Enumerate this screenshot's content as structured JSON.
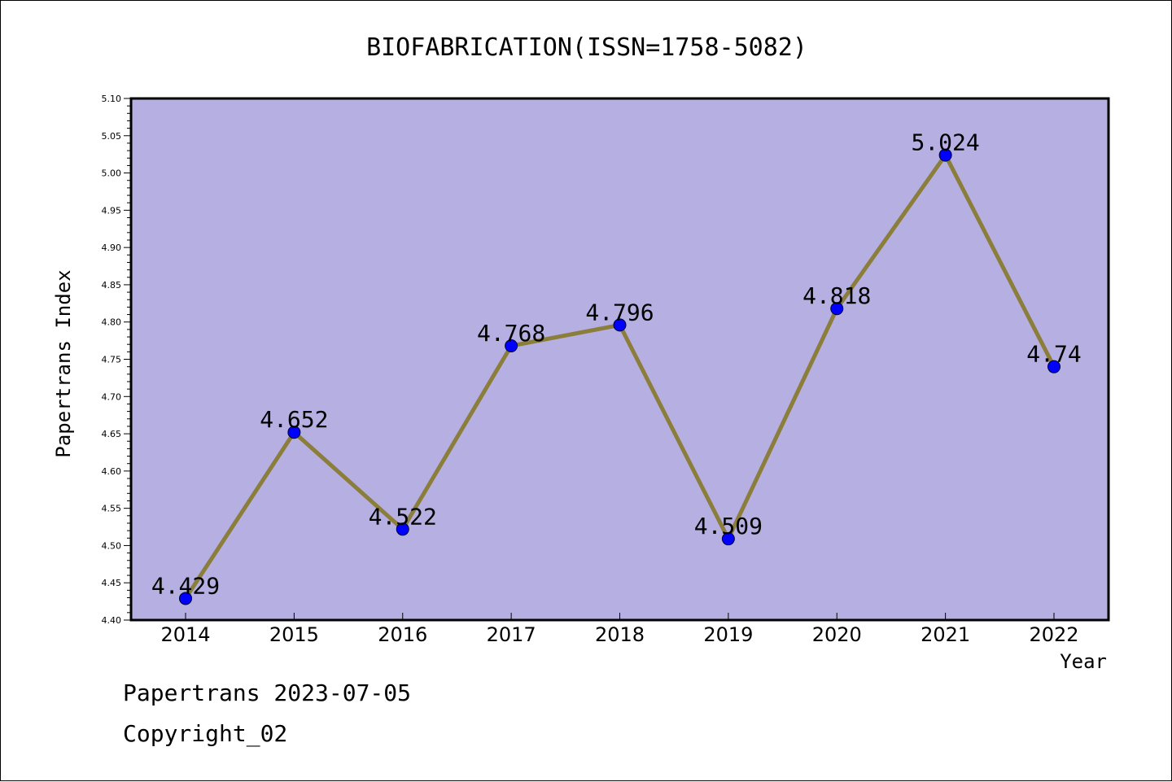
{
  "chart_data": {
    "type": "line",
    "title": "BIOFABRICATION(ISSN=1758-5082)",
    "xlabel": "Year",
    "ylabel": "Papertrans Index",
    "categories": [
      "2014",
      "2015",
      "2016",
      "2017",
      "2018",
      "2019",
      "2020",
      "2021",
      "2022"
    ],
    "values": [
      4.429,
      4.652,
      4.522,
      4.768,
      4.796,
      4.509,
      4.818,
      5.024,
      4.74
    ],
    "data_labels": [
      "4.429",
      "4.652",
      "4.522",
      "4.768",
      "4.796",
      "4.509",
      "4.818",
      "5.024",
      "4.74"
    ],
    "ylim": [
      4.4,
      5.1
    ],
    "yticks": [
      "4.40",
      "4.45",
      "4.50",
      "4.55",
      "4.60",
      "4.65",
      "4.70",
      "4.75",
      "4.80",
      "4.85",
      "4.90",
      "4.95",
      "5.00",
      "5.05",
      "5.10"
    ],
    "grid": false,
    "legend": "none",
    "colors": {
      "plot_background": "#b5afe2",
      "line": "#8b7d3a",
      "marker": "#0000ff"
    }
  },
  "footer": {
    "line1": "Papertrans 2023-07-05",
    "line2": "Copyright_02"
  }
}
